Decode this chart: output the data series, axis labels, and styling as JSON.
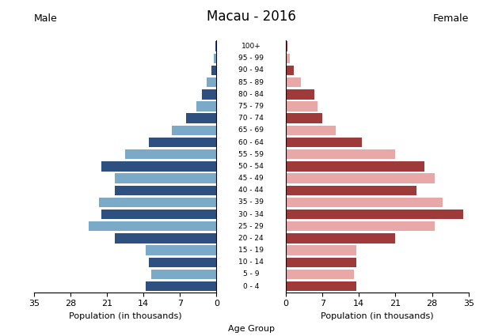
{
  "title": "Macau - 2016",
  "age_groups": [
    "100+",
    "95 - 99",
    "90 - 94",
    "85 - 89",
    "80 - 84",
    "75 - 79",
    "70 - 74",
    "65 - 69",
    "60 - 64",
    "55 - 59",
    "50 - 54",
    "45 - 49",
    "40 - 44",
    "35 - 39",
    "30 - 34",
    "25 - 29",
    "20 - 24",
    "15 - 19",
    "10 - 14",
    "5 - 9",
    "0 - 4"
  ],
  "male": [
    0.2,
    0.5,
    1.0,
    1.8,
    2.8,
    3.8,
    5.8,
    8.5,
    13.0,
    17.5,
    22.0,
    19.5,
    19.5,
    22.5,
    22.0,
    24.5,
    19.5,
    13.5,
    13.0,
    12.5,
    13.5
  ],
  "female": [
    0.3,
    0.8,
    1.5,
    2.8,
    5.5,
    6.0,
    7.0,
    9.5,
    14.5,
    21.0,
    26.5,
    28.5,
    25.0,
    30.0,
    34.0,
    28.5,
    21.0,
    13.5,
    13.5,
    13.0,
    13.5
  ],
  "male_dark": "#2e5080",
  "male_light": "#7aaac8",
  "female_dark": "#9e3a3a",
  "female_light": "#e8a8a8",
  "xlabel_left": "Population (in thousands)",
  "xlabel_center": "Age Group",
  "xlabel_right": "Population (in thousands)",
  "label_male": "Male",
  "label_female": "Female",
  "xlim": 35,
  "xticks": [
    0,
    7,
    14,
    21,
    28,
    35
  ],
  "background_color": "#ffffff"
}
